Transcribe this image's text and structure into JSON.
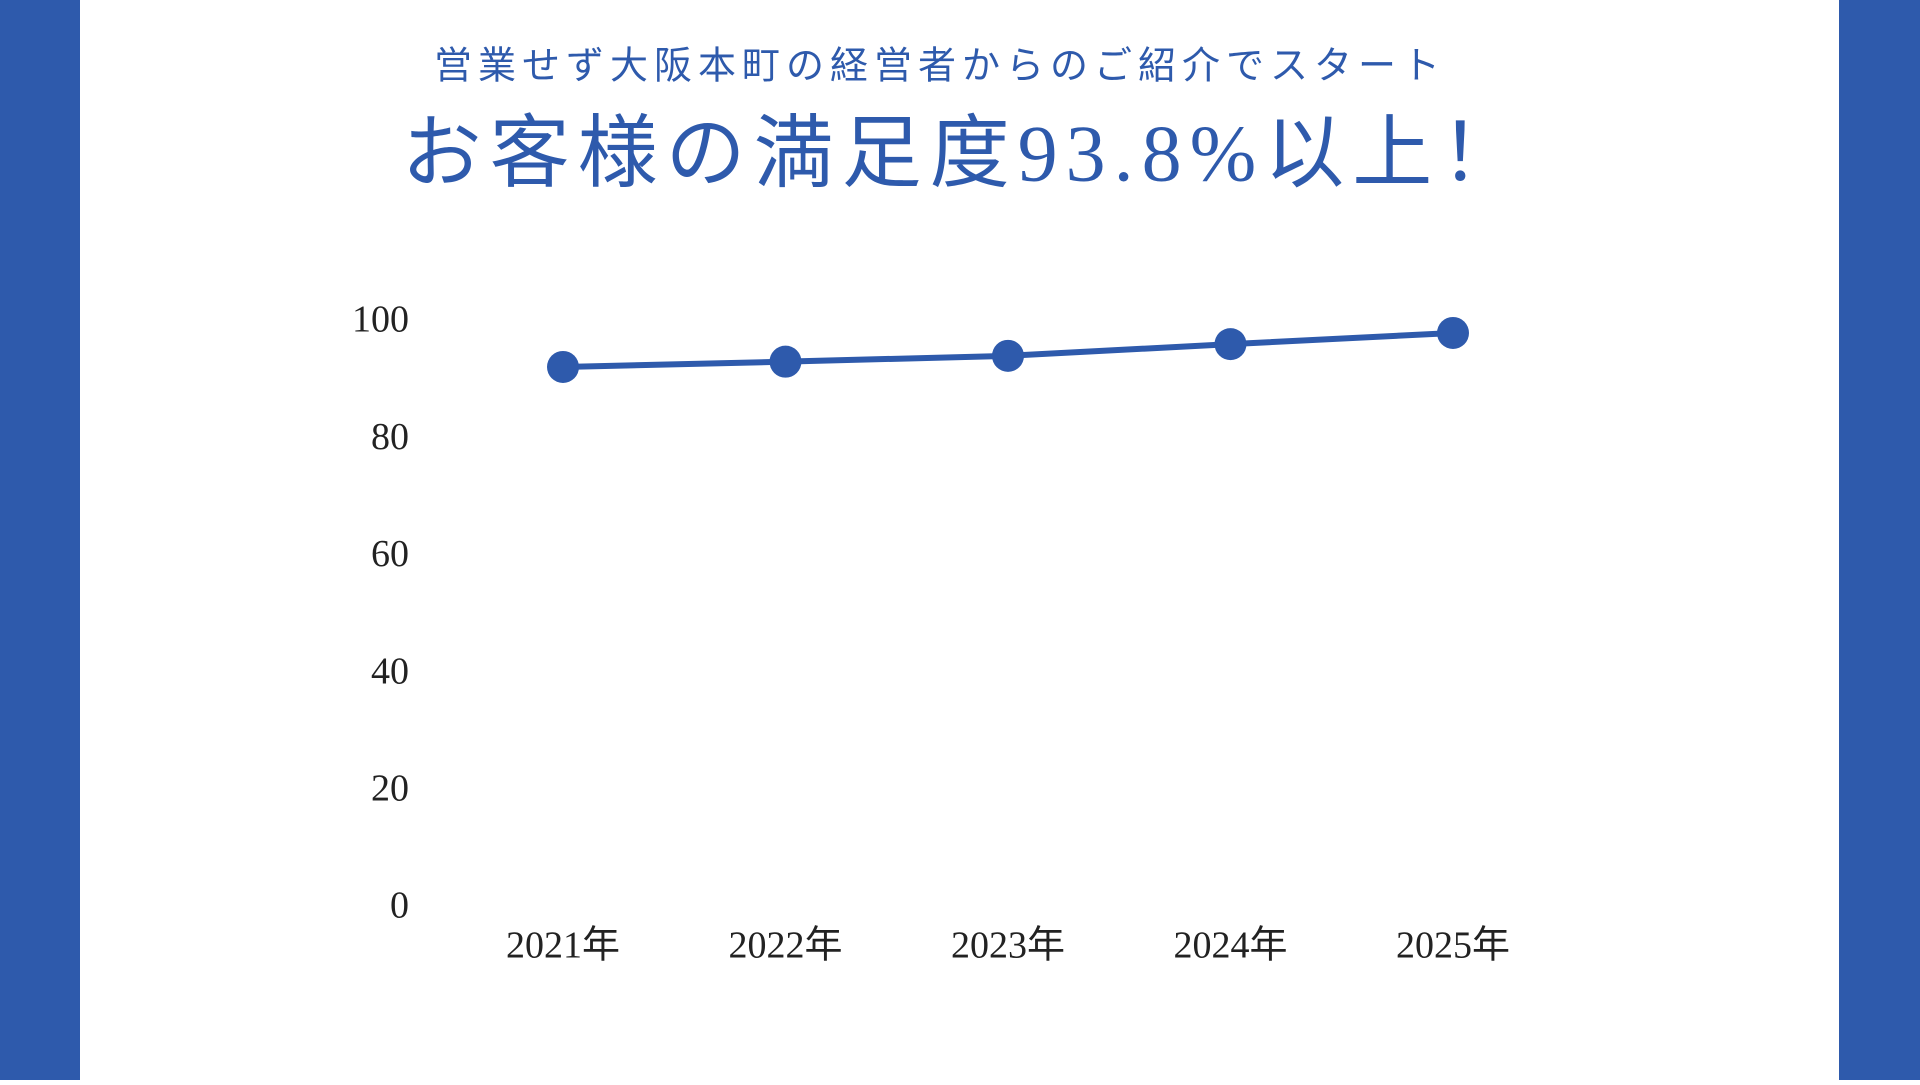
{
  "chart_data": {
    "type": "line",
    "subtitle": "営業せず大阪本町の経営者からのご紹介でスタート",
    "title": "お客様の満足度93.8%以上！",
    "categories": [
      "2021年",
      "2022年",
      "2023年",
      "2024年",
      "2025年"
    ],
    "values": [
      92.5,
      93.4,
      94.4,
      96.4,
      98.3
    ],
    "color": "#2e5aac",
    "ylim": [
      0,
      100
    ],
    "yticks": [
      0,
      20,
      40,
      60,
      80,
      100
    ],
    "grid": false
  }
}
